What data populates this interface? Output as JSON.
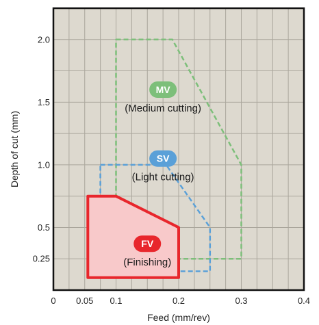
{
  "chart_data": {
    "type": "area",
    "xlabel": "Feed (mm/rev)",
    "ylabel": "Depth of cut (mm)",
    "xlim": [
      0,
      0.4
    ],
    "ylim": [
      0,
      2.25
    ],
    "grid": true,
    "x_ticks": [
      0,
      0.05,
      0.1,
      0.2,
      0.3,
      0.4
    ],
    "x_tick_labels": [
      "0",
      "0.05",
      "0.1",
      "0.2",
      "0.3",
      "0.4"
    ],
    "y_ticks": [
      0.25,
      0.5,
      1.0,
      1.5,
      2.0
    ],
    "y_tick_labels": [
      "0.25",
      "0.5",
      "1.0",
      "1.5",
      "2.0"
    ],
    "regions": [
      {
        "code": "MV",
        "description": "(Medium cutting)",
        "color": "#7dbf7a",
        "style": "dashed",
        "label_at": [
          0.175,
          1.6
        ],
        "polygon": [
          [
            0.1,
            2.0
          ],
          [
            0.19,
            2.0
          ],
          [
            0.3,
            1.0
          ],
          [
            0.3,
            0.25
          ],
          [
            0.15,
            0.25
          ],
          [
            0.1,
            0.55
          ]
        ]
      },
      {
        "code": "SV",
        "description": "(Light cutting)",
        "color": "#5aa0d8",
        "style": "dashed",
        "label_at": [
          0.175,
          1.05
        ],
        "polygon": [
          [
            0.075,
            1.0
          ],
          [
            0.18,
            1.0
          ],
          [
            0.25,
            0.5
          ],
          [
            0.25,
            0.15
          ],
          [
            0.12,
            0.15
          ],
          [
            0.075,
            0.5
          ]
        ]
      },
      {
        "code": "FV",
        "description": "(Finishing)",
        "color": "#e8262c",
        "fill": "#f8c9ca",
        "style": "solid",
        "label_at": [
          0.15,
          0.37
        ],
        "polygon": [
          [
            0.055,
            0.75
          ],
          [
            0.1,
            0.75
          ],
          [
            0.2,
            0.5
          ],
          [
            0.2,
            0.1
          ],
          [
            0.055,
            0.1
          ]
        ]
      }
    ]
  }
}
